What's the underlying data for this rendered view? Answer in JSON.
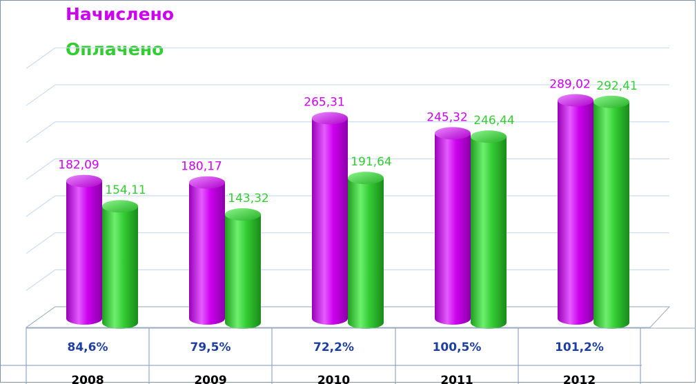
{
  "chart_data": {
    "type": "bar",
    "title": "",
    "xlabel": "",
    "ylabel": "",
    "categories": [
      "2008",
      "2009",
      "2010",
      "2011",
      "2012"
    ],
    "series": [
      {
        "name": "Начислено",
        "color": "#cc00ee",
        "values": [
          182.09,
          180.17,
          265.31,
          245.32,
          289.02
        ],
        "labels": [
          "182,09",
          "180,17",
          "265,31",
          "245,32",
          "289,02"
        ]
      },
      {
        "name": "Оплачено",
        "color": "#33cc33",
        "values": [
          154.11,
          143.32,
          191.64,
          246.44,
          292.41
        ],
        "labels": [
          "154,11",
          "143,32",
          "191,64",
          "246,44",
          "292,41"
        ]
      }
    ],
    "table_row": [
      "84,6%",
      "79,5%",
      "72,2%",
      "100,5%",
      "101,2%"
    ],
    "ylim": [
      0,
      350
    ],
    "y_axis_labels_shown": false,
    "grid": true,
    "three_d": true,
    "legend_placement": "top-left"
  }
}
